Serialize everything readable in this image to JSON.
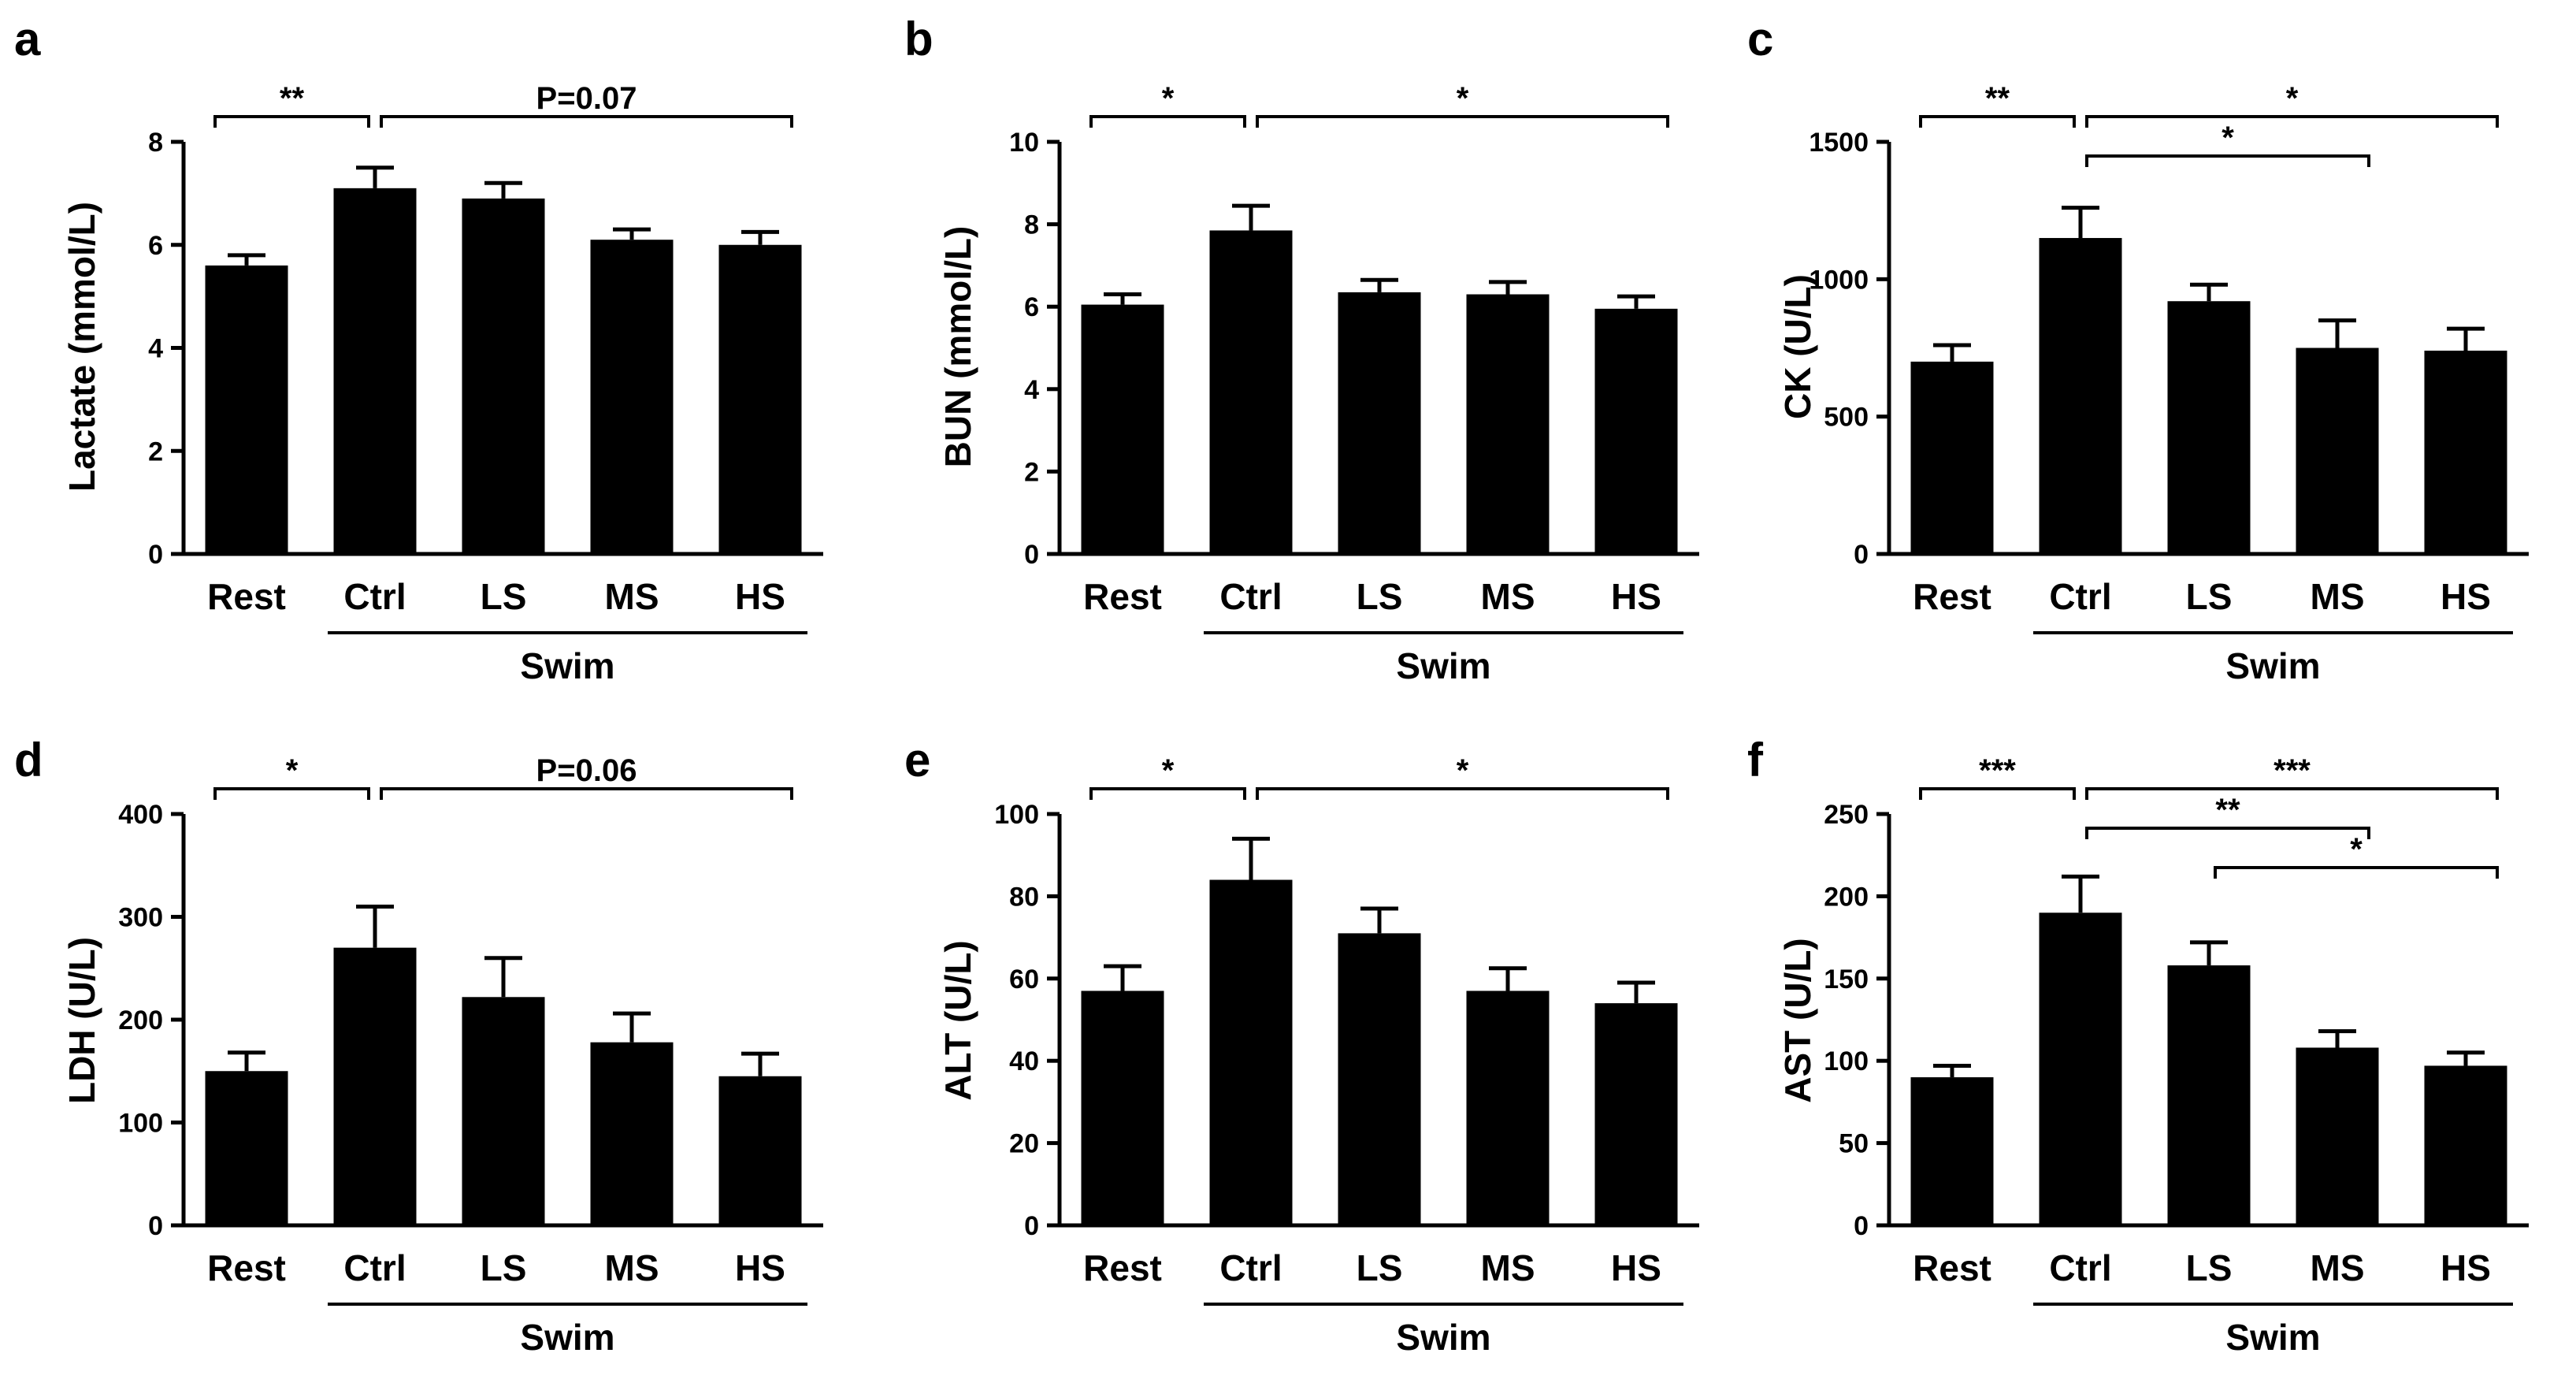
{
  "figure": {
    "group_label": "Swim",
    "categories": [
      "Rest",
      "Ctrl",
      "LS",
      "MS",
      "HS"
    ]
  },
  "chart_data": [
    {
      "type": "bar",
      "panel": "a",
      "ylabel": "Lactate (mmol/L)",
      "categories": [
        "Rest",
        "Ctrl",
        "LS",
        "MS",
        "HS"
      ],
      "values": [
        5.6,
        7.1,
        6.9,
        6.1,
        6.0
      ],
      "errors": [
        0.2,
        0.4,
        0.3,
        0.2,
        0.25
      ],
      "ylim": [
        0,
        8
      ],
      "yticks": [
        0,
        2,
        4,
        6,
        8
      ],
      "group_label": "Swim",
      "significance": [
        {
          "from": 0,
          "to": 1,
          "label": "**",
          "level": 0
        },
        {
          "from": 1,
          "to": 4,
          "label": "P=0.07",
          "level": 0
        }
      ]
    },
    {
      "type": "bar",
      "panel": "b",
      "ylabel": "BUN (mmol/L)",
      "categories": [
        "Rest",
        "Ctrl",
        "LS",
        "MS",
        "HS"
      ],
      "values": [
        6.05,
        7.85,
        6.35,
        6.3,
        5.95
      ],
      "errors": [
        0.25,
        0.6,
        0.3,
        0.3,
        0.3
      ],
      "ylim": [
        0,
        10
      ],
      "yticks": [
        0,
        2,
        4,
        6,
        8,
        10
      ],
      "group_label": "Swim",
      "significance": [
        {
          "from": 0,
          "to": 1,
          "label": "*",
          "level": 0
        },
        {
          "from": 1,
          "to": 4,
          "label": "*",
          "level": 0
        }
      ]
    },
    {
      "type": "bar",
      "panel": "c",
      "ylabel": "CK (U/L)",
      "categories": [
        "Rest",
        "Ctrl",
        "LS",
        "MS",
        "HS"
      ],
      "values": [
        700,
        1150,
        920,
        750,
        740
      ],
      "errors": [
        60,
        110,
        60,
        100,
        80
      ],
      "ylim": [
        0,
        1500
      ],
      "yticks": [
        0,
        500,
        1000,
        1500
      ],
      "group_label": "Swim",
      "significance": [
        {
          "from": 0,
          "to": 1,
          "label": "**",
          "level": 0
        },
        {
          "from": 1,
          "to": 4,
          "label": "*",
          "level": 0
        },
        {
          "from": 1,
          "to": 3,
          "label": "*",
          "level": 1
        }
      ]
    },
    {
      "type": "bar",
      "panel": "d",
      "ylabel": "LDH (U/L)",
      "categories": [
        "Rest",
        "Ctrl",
        "LS",
        "MS",
        "HS"
      ],
      "values": [
        150,
        270,
        222,
        178,
        145
      ],
      "errors": [
        18,
        40,
        38,
        28,
        22
      ],
      "ylim": [
        0,
        400
      ],
      "yticks": [
        0,
        100,
        200,
        300,
        400
      ],
      "group_label": "Swim",
      "significance": [
        {
          "from": 0,
          "to": 1,
          "label": "*",
          "level": 0
        },
        {
          "from": 1,
          "to": 4,
          "label": "P=0.06",
          "level": 0
        }
      ]
    },
    {
      "type": "bar",
      "panel": "e",
      "ylabel": "ALT (U/L)",
      "categories": [
        "Rest",
        "Ctrl",
        "LS",
        "MS",
        "HS"
      ],
      "values": [
        57,
        84,
        71,
        57,
        54
      ],
      "errors": [
        6,
        10,
        6,
        5.5,
        5
      ],
      "ylim": [
        0,
        100
      ],
      "yticks": [
        0,
        20,
        40,
        60,
        80,
        100
      ],
      "group_label": "Swim",
      "significance": [
        {
          "from": 0,
          "to": 1,
          "label": "*",
          "level": 0
        },
        {
          "from": 1,
          "to": 4,
          "label": "*",
          "level": 0
        }
      ]
    },
    {
      "type": "bar",
      "panel": "f",
      "ylabel": "AST (U/L)",
      "categories": [
        "Rest",
        "Ctrl",
        "LS",
        "MS",
        "HS"
      ],
      "values": [
        90,
        190,
        158,
        108,
        97
      ],
      "errors": [
        7,
        22,
        14,
        10,
        8
      ],
      "ylim": [
        0,
        250
      ],
      "yticks": [
        0,
        50,
        100,
        150,
        200,
        250
      ],
      "group_label": "Swim",
      "significance": [
        {
          "from": 0,
          "to": 1,
          "label": "***",
          "level": 0
        },
        {
          "from": 1,
          "to": 4,
          "label": "***",
          "level": 0
        },
        {
          "from": 1,
          "to": 3,
          "label": "**",
          "level": 1
        },
        {
          "from": 2,
          "to": 4,
          "label": "*",
          "level": 2
        }
      ]
    }
  ]
}
